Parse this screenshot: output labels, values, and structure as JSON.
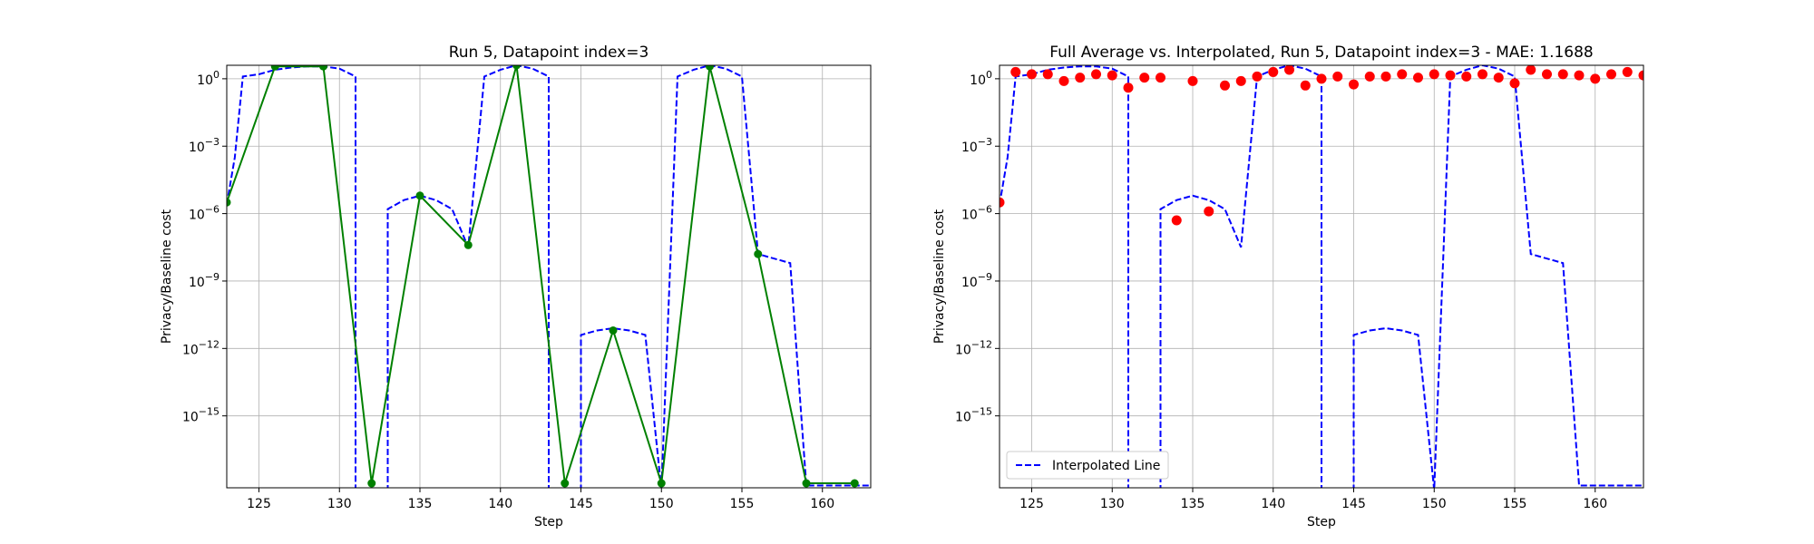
{
  "chart_data": [
    {
      "type": "line",
      "title": "Run 5, Datapoint index=3",
      "xlabel": "Step",
      "ylabel": "Privacy/Baseline cost",
      "xscale": "linear",
      "yscale": "log",
      "xlim": [
        123,
        163
      ],
      "ylim_log10": [
        -18.2,
        0.6
      ],
      "xticks": [
        125,
        130,
        135,
        140,
        145,
        150,
        155,
        160
      ],
      "yticks_exp": [
        0,
        -3,
        -6,
        -9,
        -12,
        -15
      ],
      "ytick_labels": [
        "10^0",
        "10^−3",
        "10^−6",
        "10^−9",
        "10^−12",
        "10^−15"
      ],
      "grid": true,
      "legend": null,
      "series": [
        {
          "name": "",
          "style": "dashed",
          "color": "#0000ff",
          "points": [
            [
              123,
              -5.6
            ],
            [
              123.5,
              -3.5
            ],
            [
              124,
              0.1
            ],
            [
              125,
              0.2
            ],
            [
              126,
              0.4
            ],
            [
              127,
              0.5
            ],
            [
              128,
              0.55
            ],
            [
              129,
              0.55
            ],
            [
              130,
              0.45
            ],
            [
              131,
              0.1
            ],
            [
              131,
              -18.3
            ],
            [
              133,
              -18.3
            ],
            [
              133,
              -5.8
            ],
            [
              134,
              -5.4
            ],
            [
              135,
              -5.2
            ],
            [
              136,
              -5.4
            ],
            [
              137,
              -5.8
            ],
            [
              138,
              -7.5
            ],
            [
              139,
              0.1
            ],
            [
              140,
              0.4
            ],
            [
              141,
              0.6
            ],
            [
              142,
              0.45
            ],
            [
              143,
              0.1
            ],
            [
              143,
              -18.3
            ],
            [
              145,
              -18.3
            ],
            [
              145,
              -11.4
            ],
            [
              146,
              -11.2
            ],
            [
              147,
              -11.1
            ],
            [
              148,
              -11.2
            ],
            [
              149,
              -11.4
            ],
            [
              150,
              -18.3
            ],
            [
              151,
              0.1
            ],
            [
              152,
              0.4
            ],
            [
              153,
              0.6
            ],
            [
              154,
              0.45
            ],
            [
              155,
              0.1
            ],
            [
              156,
              -7.8
            ],
            [
              157,
              -8.0
            ],
            [
              158,
              -8.2
            ],
            [
              159,
              -18.1
            ],
            [
              160,
              -18.1
            ],
            [
              161,
              -18.1
            ],
            [
              162,
              -18.1
            ],
            [
              163,
              -18.1
            ]
          ]
        },
        {
          "name": "",
          "style": "solid-markers",
          "color": "#008000",
          "points": [
            [
              123,
              -5.5
            ],
            [
              126,
              0.55
            ],
            [
              129,
              0.55
            ],
            [
              132,
              -18.0
            ],
            [
              135,
              -5.2
            ],
            [
              138,
              -7.4
            ],
            [
              141,
              0.6
            ],
            [
              144,
              -18.0
            ],
            [
              147,
              -11.2
            ],
            [
              150,
              -18.0
            ],
            [
              153,
              0.55
            ],
            [
              156,
              -7.8
            ],
            [
              159,
              -18.0
            ],
            [
              162,
              -18.0
            ]
          ]
        }
      ]
    },
    {
      "type": "line",
      "title": "Full Average vs. Interpolated, Run 5, Datapoint index=3 - MAE: 1.1688",
      "xlabel": "Step",
      "ylabel": "Privacy/Baseline cost",
      "xscale": "linear",
      "yscale": "log",
      "xlim": [
        123,
        163
      ],
      "ylim_log10": [
        -18.2,
        0.6
      ],
      "xticks": [
        125,
        130,
        135,
        140,
        145,
        150,
        155,
        160
      ],
      "yticks_exp": [
        0,
        -3,
        -6,
        -9,
        -12,
        -15
      ],
      "ytick_labels": [
        "10^0",
        "10^−3",
        "10^−6",
        "10^−9",
        "10^−12",
        "10^−15"
      ],
      "grid": true,
      "legend": {
        "position": "lower-left",
        "entries": [
          "Interpolated Line"
        ]
      },
      "series": [
        {
          "name": "Interpolated Line",
          "style": "dashed",
          "color": "#0000ff",
          "points": [
            [
              123,
              -5.6
            ],
            [
              123.5,
              -3.5
            ],
            [
              124,
              0.1
            ],
            [
              125,
              0.2
            ],
            [
              126,
              0.4
            ],
            [
              127,
              0.5
            ],
            [
              128,
              0.55
            ],
            [
              129,
              0.55
            ],
            [
              130,
              0.45
            ],
            [
              131,
              0.1
            ],
            [
              131,
              -18.3
            ],
            [
              133,
              -18.3
            ],
            [
              133,
              -5.8
            ],
            [
              134,
              -5.4
            ],
            [
              135,
              -5.2
            ],
            [
              136,
              -5.4
            ],
            [
              137,
              -5.8
            ],
            [
              138,
              -7.5
            ],
            [
              139,
              0.1
            ],
            [
              140,
              0.4
            ],
            [
              141,
              0.6
            ],
            [
              142,
              0.45
            ],
            [
              143,
              0.1
            ],
            [
              143,
              -18.3
            ],
            [
              145,
              -18.3
            ],
            [
              145,
              -11.4
            ],
            [
              146,
              -11.2
            ],
            [
              147,
              -11.1
            ],
            [
              148,
              -11.2
            ],
            [
              149,
              -11.4
            ],
            [
              150,
              -18.3
            ],
            [
              151,
              0.1
            ],
            [
              152,
              0.4
            ],
            [
              153,
              0.6
            ],
            [
              154,
              0.45
            ],
            [
              155,
              0.1
            ],
            [
              156,
              -7.8
            ],
            [
              157,
              -8.0
            ],
            [
              158,
              -8.2
            ],
            [
              159,
              -18.1
            ],
            [
              160,
              -18.1
            ],
            [
              161,
              -18.1
            ],
            [
              162,
              -18.1
            ],
            [
              163,
              -18.1
            ]
          ]
        },
        {
          "name": "",
          "style": "scatter",
          "color": "#ff0000",
          "points": [
            [
              123,
              -5.5
            ],
            [
              124,
              0.3
            ],
            [
              125,
              0.2
            ],
            [
              126,
              0.2
            ],
            [
              127,
              -0.1
            ],
            [
              128,
              0.05
            ],
            [
              129,
              0.2
            ],
            [
              130,
              0.15
            ],
            [
              131,
              -0.4
            ],
            [
              132,
              0.05
            ],
            [
              133,
              0.05
            ],
            [
              134,
              -6.3
            ],
            [
              135,
              -0.1
            ],
            [
              136,
              -5.9
            ],
            [
              137,
              -0.3
            ],
            [
              138,
              -0.1
            ],
            [
              139,
              0.1
            ],
            [
              140,
              0.3
            ],
            [
              141,
              0.4
            ],
            [
              142,
              -0.3
            ],
            [
              143,
              0.0
            ],
            [
              144,
              0.1
            ],
            [
              145,
              -0.25
            ],
            [
              146,
              0.1
            ],
            [
              147,
              0.1
            ],
            [
              148,
              0.2
            ],
            [
              149,
              0.05
            ],
            [
              150,
              0.2
            ],
            [
              151,
              0.15
            ],
            [
              152,
              0.1
            ],
            [
              153,
              0.2
            ],
            [
              154,
              0.05
            ],
            [
              155,
              -0.2
            ],
            [
              156,
              0.4
            ],
            [
              157,
              0.2
            ],
            [
              158,
              0.2
            ],
            [
              159,
              0.15
            ],
            [
              160,
              0.0
            ],
            [
              161,
              0.2
            ],
            [
              162,
              0.3
            ],
            [
              163,
              0.15
            ]
          ]
        }
      ]
    }
  ]
}
